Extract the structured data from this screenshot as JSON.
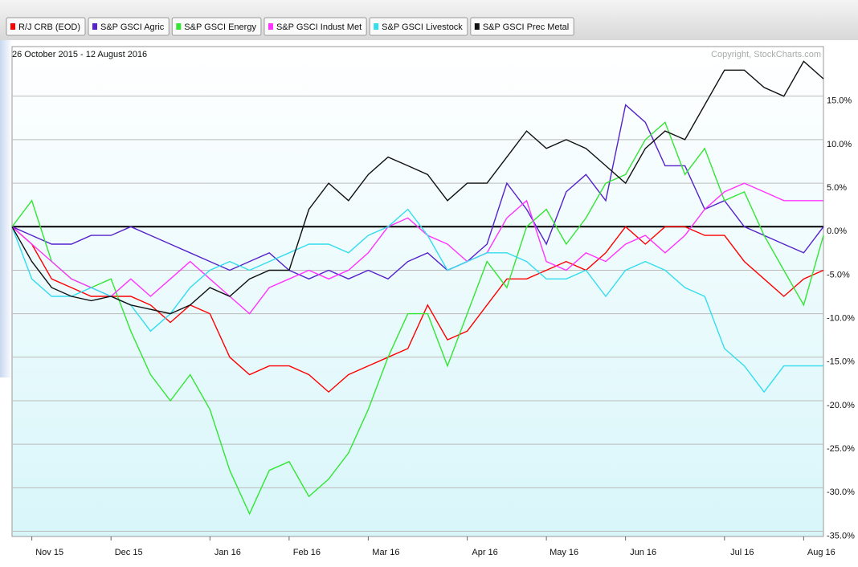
{
  "chart_data": {
    "type": "line",
    "subtitle": "26 October 2015 - 12 August 2016",
    "annotation": "Copyright, StockCharts.com",
    "categories": [
      null,
      "Nov 15",
      null,
      null,
      null,
      "Dec 15",
      null,
      null,
      null,
      null,
      "Jan 16",
      null,
      null,
      null,
      "Feb 16",
      null,
      null,
      null,
      "Mar 16",
      null,
      null,
      null,
      null,
      "Apr 16",
      null,
      null,
      null,
      "May 16",
      null,
      null,
      null,
      "Jun 16",
      null,
      null,
      null,
      null,
      "Jul 16",
      null,
      null,
      null,
      "Aug 16",
      null
    ],
    "series": [
      {
        "name": "R/J CRB (EOD)",
        "color": "#ff0000",
        "values": [
          0,
          -2,
          -6,
          -7,
          -8,
          -8,
          -8,
          -9,
          -11,
          -9,
          -10,
          -15,
          -17,
          -16,
          -16,
          -17,
          -19,
          -17,
          -16,
          -15,
          -14,
          -9,
          -13,
          -12,
          -9,
          -6,
          -6,
          -5,
          -4,
          -5,
          -3,
          0,
          -2,
          0,
          0,
          -1,
          -1,
          -4,
          -6,
          -8,
          -6,
          -5
        ]
      },
      {
        "name": "S&P GSCI Agric",
        "color": "#5522cc",
        "values": [
          0,
          -1,
          -2,
          -2,
          -1,
          -1,
          0,
          -1,
          -2,
          -3,
          -4,
          -5,
          -4,
          -3,
          -5,
          -6,
          -5,
          -6,
          -5,
          -6,
          -4,
          -3,
          -5,
          -4,
          -2,
          5,
          2,
          -2,
          4,
          6,
          3,
          14,
          12,
          7,
          7,
          2,
          3,
          0,
          -1,
          -2,
          -3,
          0
        ]
      },
      {
        "name": "S&P GSCI Energy",
        "color": "#33e633",
        "values": [
          0,
          3,
          -4,
          -6,
          -7,
          -6,
          -12,
          -17,
          -20,
          -17,
          -21,
          -28,
          -33,
          -28,
          -27,
          -31,
          -29,
          -26,
          -21,
          -15,
          -10,
          -10,
          -16,
          -10,
          -4,
          -7,
          0,
          2,
          -2,
          1,
          5,
          6,
          10,
          12,
          6,
          9,
          3,
          4,
          -1,
          -5,
          -9,
          -1
        ]
      },
      {
        "name": "S&P GSCI Indust Met",
        "color": "#ff33ff",
        "values": [
          0,
          -2,
          -4,
          -6,
          -7,
          -8,
          -6,
          -8,
          -6,
          -4,
          -6,
          -8,
          -10,
          -7,
          -6,
          -5,
          -6,
          -5,
          -3,
          0,
          1,
          -1,
          -2,
          -4,
          -3,
          1,
          3,
          -4,
          -5,
          -3,
          -4,
          -2,
          -1,
          -3,
          -1,
          2,
          4,
          5,
          4,
          3,
          3,
          3
        ]
      },
      {
        "name": "S&P GSCI Livestock",
        "color": "#33ddee",
        "values": [
          0,
          -6,
          -8,
          -8,
          -7,
          -8,
          -9,
          -12,
          -10,
          -7,
          -5,
          -4,
          -5,
          -4,
          -3,
          -2,
          -2,
          -3,
          -1,
          0,
          2,
          -1,
          -5,
          -4,
          -3,
          -3,
          -4,
          -6,
          -6,
          -5,
          -8,
          -5,
          -4,
          -5,
          -7,
          -8,
          -14,
          -16,
          -19,
          -16,
          -16,
          -16
        ]
      },
      {
        "name": "S&P GSCI Prec Metal",
        "color": "#111111",
        "values": [
          0,
          -4,
          -7,
          -8,
          -8.5,
          -8,
          -9,
          -9.5,
          -10,
          -9,
          -7,
          -8,
          -6,
          -5,
          -5,
          2,
          5,
          3,
          6,
          8,
          7,
          6,
          3,
          5,
          5,
          8,
          11,
          9,
          10,
          9,
          7,
          5,
          9,
          11,
          10,
          14,
          18,
          18,
          16,
          15,
          19,
          17
        ]
      }
    ],
    "ylim": [
      -35.6,
      20.7
    ],
    "yticks": [
      {
        "value": -35,
        "label": "-35.0%"
      },
      {
        "value": -30,
        "label": "-30.0%"
      },
      {
        "value": -25,
        "label": "-25.0%"
      },
      {
        "value": -20,
        "label": "-20.0%"
      },
      {
        "value": -15,
        "label": "-15.0%"
      },
      {
        "value": -10,
        "label": "-10.0%"
      },
      {
        "value": -5,
        "label": "-5.0%"
      },
      {
        "value": 0,
        "label": "0.0%"
      },
      {
        "value": 5,
        "label": "5.0%"
      },
      {
        "value": 10,
        "label": "10.0%"
      },
      {
        "value": 15,
        "label": "15.0%"
      }
    ],
    "grid": true
  }
}
